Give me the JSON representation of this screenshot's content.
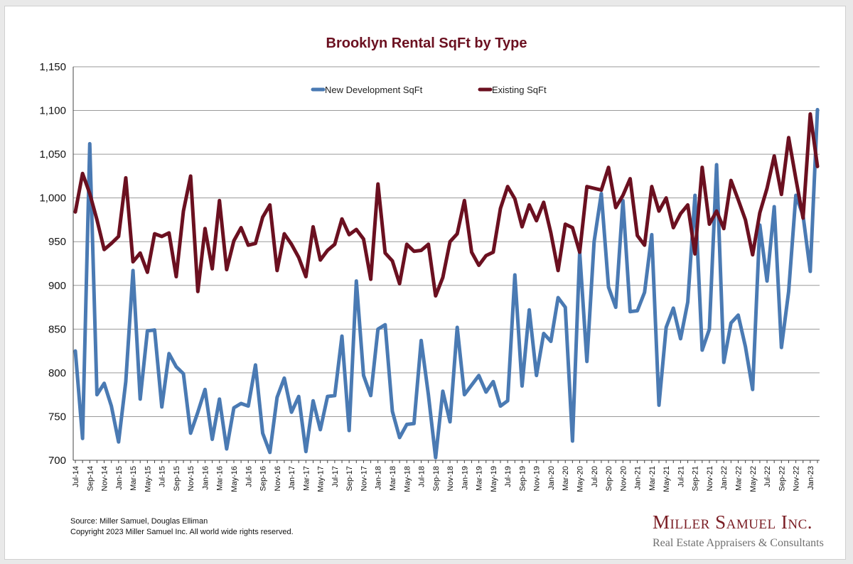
{
  "chart_data": {
    "type": "line",
    "title": "Brooklyn Rental SqFt by Type",
    "xlabel": "",
    "ylabel": "",
    "ylim": [
      700,
      1150
    ],
    "yticks": [
      "700",
      "750",
      "800",
      "850",
      "900",
      "950",
      "1,000",
      "1,050",
      "1,100",
      "1,150"
    ],
    "grid": true,
    "legend_position": "top",
    "x": [
      "Jul-14",
      "Aug-14",
      "Sep-14",
      "Oct-14",
      "Nov-14",
      "Dec-14",
      "Jan-15",
      "Feb-15",
      "Mar-15",
      "Apr-15",
      "May-15",
      "Jun-15",
      "Jul-15",
      "Aug-15",
      "Sep-15",
      "Oct-15",
      "Nov-15",
      "Dec-15",
      "Jan-16",
      "Feb-16",
      "Mar-16",
      "Apr-16",
      "May-16",
      "Jun-16",
      "Jul-16",
      "Aug-16",
      "Sep-16",
      "Oct-16",
      "Nov-16",
      "Dec-16",
      "Jan-17",
      "Feb-17",
      "Mar-17",
      "Apr-17",
      "May-17",
      "Jun-17",
      "Jul-17",
      "Aug-17",
      "Sep-17",
      "Oct-17",
      "Nov-17",
      "Dec-17",
      "Jan-18",
      "Feb-18",
      "Mar-18",
      "Apr-18",
      "May-18",
      "Jun-18",
      "Jul-18",
      "Aug-18",
      "Sep-18",
      "Oct-18",
      "Nov-18",
      "Dec-18",
      "Jan-19",
      "Feb-19",
      "Mar-19",
      "Apr-19",
      "May-19",
      "Jun-19",
      "Jul-19",
      "Aug-19",
      "Sep-19",
      "Oct-19",
      "Nov-19",
      "Dec-19",
      "Jan-20",
      "Feb-20",
      "Mar-20",
      "Apr-20",
      "May-20",
      "Jun-20",
      "Jul-20",
      "Aug-20",
      "Sep-20",
      "Oct-20",
      "Nov-20",
      "Dec-20",
      "Jan-21",
      "Feb-21",
      "Mar-21",
      "Apr-21",
      "May-21",
      "Jun-21",
      "Jul-21",
      "Aug-21",
      "Sep-21",
      "Oct-21",
      "Nov-21",
      "Dec-21",
      "Jan-22",
      "Feb-22",
      "Mar-22",
      "Apr-22",
      "May-22",
      "Jun-22",
      "Jul-22",
      "Aug-22",
      "Sep-22",
      "Oct-22",
      "Nov-22",
      "Dec-22",
      "Jan-23",
      "Feb-23"
    ],
    "xtick_labels": [
      "Jul-14",
      "Sep-14",
      "Nov-14",
      "Jan-15",
      "Mar-15",
      "May-15",
      "Jul-15",
      "Sep-15",
      "Nov-15",
      "Jan-16",
      "Mar-16",
      "May-16",
      "Jul-16",
      "Sep-16",
      "Nov-16",
      "Jan-17",
      "Mar-17",
      "May-17",
      "Jul-17",
      "Sep-17",
      "Nov-17",
      "Jan-18",
      "Mar-18",
      "May-18",
      "Jul-18",
      "Sep-18",
      "Nov-18",
      "Jan-19",
      "Mar-19",
      "May-19",
      "Jul-19",
      "Sep-19",
      "Nov-19",
      "Jan-20",
      "Mar-20",
      "May-20",
      "Jul-20",
      "Sep-20",
      "Nov-20",
      "Jan-21",
      "Mar-21",
      "May-21",
      "Jul-21",
      "Sep-21",
      "Nov-21",
      "Jan-22",
      "Mar-22",
      "May-22",
      "Jul-22",
      "Sep-22",
      "Nov-22",
      "Jan-23"
    ],
    "series": [
      {
        "name": "New Development SqFt",
        "color": "#4a7ab3",
        "values": [
          825,
          725,
          1062,
          775,
          788,
          762,
          721,
          790,
          917,
          770,
          848,
          849,
          761,
          822,
          807,
          799,
          731,
          755,
          781,
          724,
          770,
          713,
          760,
          765,
          762,
          809,
          731,
          709,
          772,
          794,
          755,
          773,
          710,
          768,
          735,
          773,
          774,
          842,
          734,
          905,
          797,
          774,
          850,
          855,
          756,
          726,
          741,
          742,
          837,
          775,
          703,
          779,
          744,
          852,
          775,
          786,
          797,
          778,
          790,
          762,
          768,
          912,
          785,
          872,
          797,
          845,
          836,
          886,
          875,
          722,
          938,
          813,
          950,
          1005,
          898,
          875,
          997,
          870,
          871,
          892,
          958,
          763,
          852,
          874,
          839,
          881,
          1003,
          826,
          850,
          1038,
          812,
          857,
          866,
          830,
          781,
          969,
          905,
          990,
          829,
          893,
          1003,
          980,
          916,
          1101
        ]
      },
      {
        "name": "Existing SqFt",
        "color": "#6b1020",
        "values": [
          984,
          1028,
          1005,
          975,
          941,
          948,
          956,
          1023,
          927,
          937,
          915,
          959,
          956,
          960,
          910,
          985,
          1025,
          893,
          965,
          919,
          997,
          918,
          951,
          966,
          946,
          948,
          978,
          992,
          917,
          959,
          947,
          932,
          910,
          967,
          929,
          940,
          947,
          976,
          958,
          964,
          953,
          907,
          1016,
          937,
          928,
          902,
          947,
          939,
          940,
          947,
          888,
          909,
          950,
          959,
          997,
          938,
          923,
          934,
          938,
          988,
          1013,
          999,
          967,
          992,
          974,
          995,
          960,
          917,
          970,
          966,
          938,
          1013,
          1011,
          1009,
          1035,
          989,
          1003,
          1022,
          957,
          946,
          1013,
          985,
          1000,
          966,
          982,
          992,
          936,
          1035,
          970,
          985,
          965,
          1020,
          998,
          975,
          935,
          983,
          1011,
          1048,
          1004,
          1069,
          1022,
          977,
          1096,
          1036
        ]
      }
    ]
  },
  "footer": {
    "source": "Source: Miller Samuel, Douglas Elliman",
    "copyright": "Copyright 2023 Miller Samuel Inc.  All world wide rights reserved."
  },
  "logo": {
    "name": "Miller Samuel Inc.",
    "tagline": "Real Estate Appraisers & Consultants"
  }
}
